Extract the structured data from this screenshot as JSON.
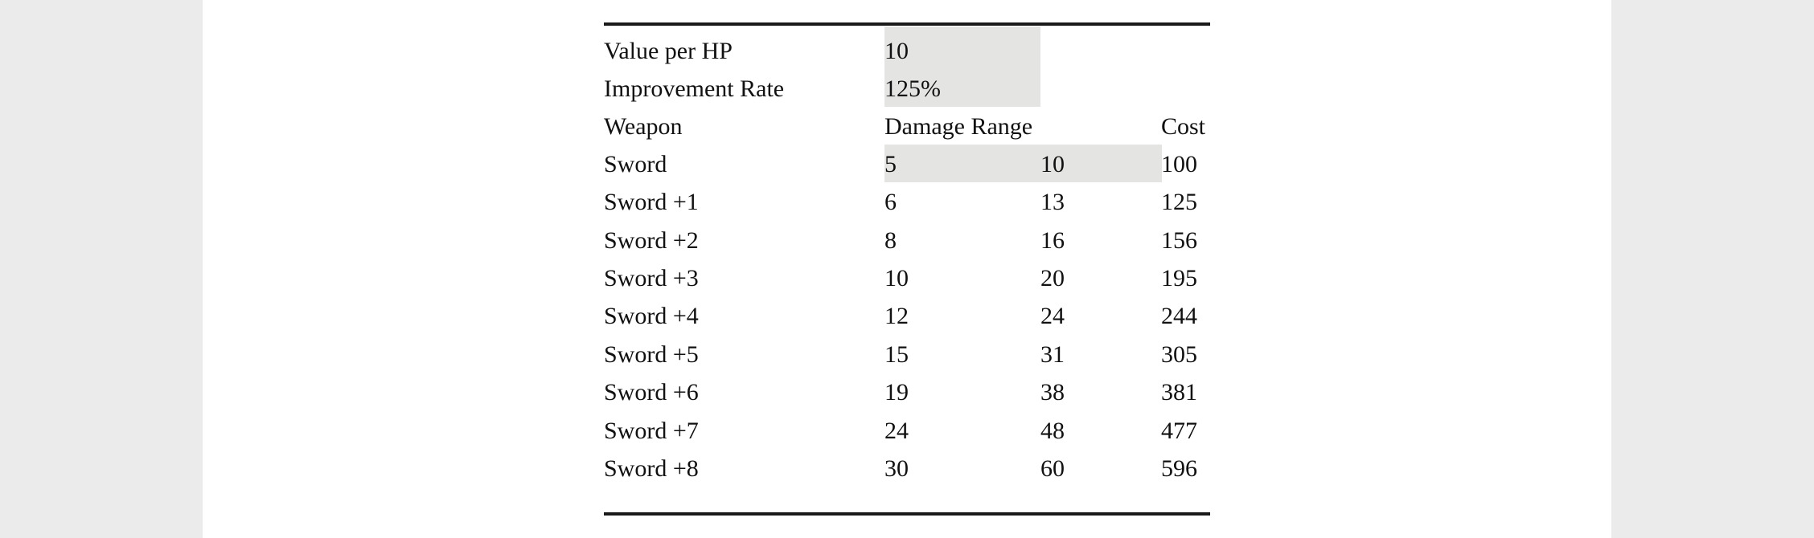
{
  "inputs": {
    "value_per_hp": {
      "label": "Value per HP",
      "value": "10"
    },
    "improvement_rate": {
      "label": "Improvement Rate",
      "value": "125%"
    }
  },
  "headers": {
    "weapon": "Weapon",
    "damage_range": "Damage Range",
    "cost": "Cost"
  },
  "rows": [
    {
      "weapon": "Sword",
      "min": "5",
      "max": "10",
      "cost": "100"
    },
    {
      "weapon": "Sword +1",
      "min": "6",
      "max": "13",
      "cost": "125"
    },
    {
      "weapon": "Sword +2",
      "min": "8",
      "max": "16",
      "cost": "156"
    },
    {
      "weapon": "Sword +3",
      "min": "10",
      "max": "20",
      "cost": "195"
    },
    {
      "weapon": "Sword +4",
      "min": "12",
      "max": "24",
      "cost": "244"
    },
    {
      "weapon": "Sword +5",
      "min": "15",
      "max": "31",
      "cost": "305"
    },
    {
      "weapon": "Sword +6",
      "min": "19",
      "max": "38",
      "cost": "381"
    },
    {
      "weapon": "Sword +7",
      "min": "24",
      "max": "48",
      "cost": "477"
    },
    {
      "weapon": "Sword +8",
      "min": "30",
      "max": "60",
      "cost": "596"
    }
  ],
  "colors": {
    "background": "#ebebeb",
    "page": "#ffffff",
    "input_shading": "#e4e4e3",
    "text": "#111111",
    "rule": "#1a1a1a"
  }
}
